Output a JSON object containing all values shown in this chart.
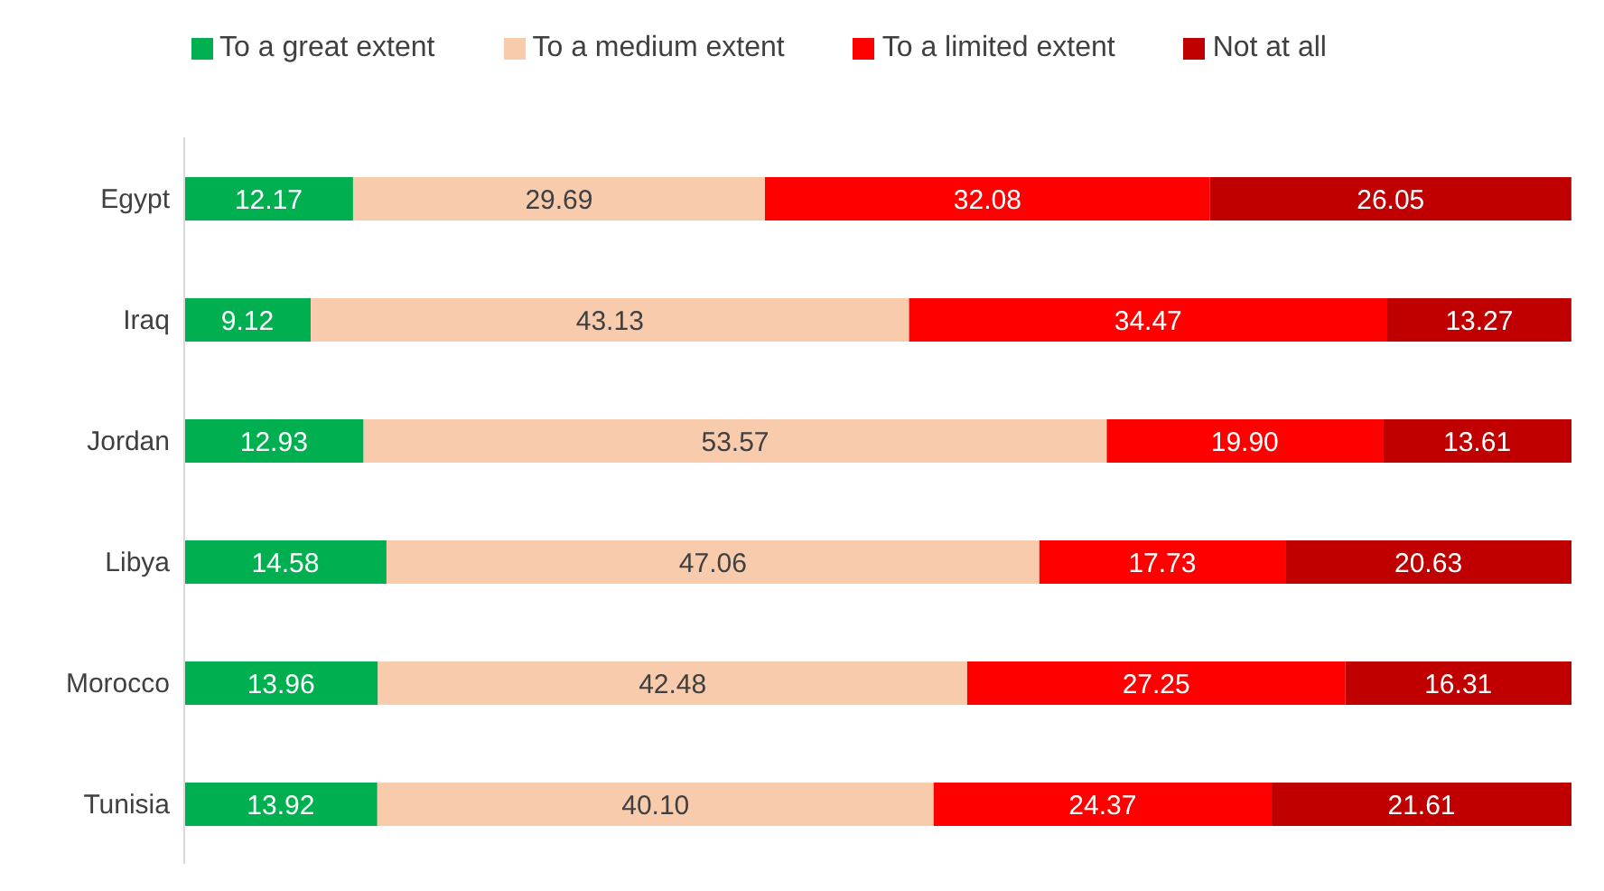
{
  "chart_data": {
    "type": "bar",
    "orientation": "horizontal",
    "stacked": true,
    "legend": "top",
    "grid": false,
    "tick_labels": "y",
    "xlim": [
      0,
      100
    ],
    "categories": [
      "Egypt",
      "Iraq",
      "Jordan",
      "Libya",
      "Morocco",
      "Tunisia"
    ],
    "series": [
      {
        "name": "To a great extent",
        "color": "#00b050",
        "values": [
          12.17,
          9.12,
          12.93,
          14.58,
          13.96,
          13.92
        ],
        "value_labels": [
          "12.17",
          "9.12",
          "12.93",
          "14.58",
          "13.96",
          "13.92"
        ]
      },
      {
        "name": "To a medium extent",
        "color": "#f8cbad",
        "values": [
          29.69,
          43.13,
          53.57,
          47.06,
          42.48,
          40.1
        ],
        "value_labels": [
          "29.69",
          "43.13",
          "53.57",
          "47.06",
          "42.48",
          "40.10"
        ]
      },
      {
        "name": "To a limited extent",
        "color": "#ff0000",
        "values": [
          32.08,
          34.47,
          19.9,
          17.73,
          27.25,
          24.37
        ],
        "value_labels": [
          "32.08",
          "34.47",
          "19.90",
          "17.73",
          "27.25",
          "24.37"
        ]
      },
      {
        "name": "Not at all",
        "color": "#c00000",
        "values": [
          26.05,
          13.27,
          13.61,
          20.63,
          16.31,
          21.61
        ],
        "value_labels": [
          "26.05",
          "13.27",
          "13.61",
          "20.63",
          "16.31",
          "21.61"
        ]
      }
    ]
  }
}
